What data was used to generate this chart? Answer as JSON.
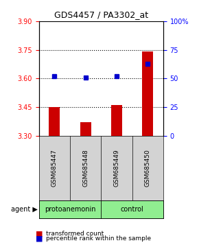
{
  "title": "GDS4457 / PA3302_at",
  "samples": [
    "GSM685447",
    "GSM685448",
    "GSM685449",
    "GSM685450"
  ],
  "red_values": [
    3.452,
    3.373,
    3.462,
    3.742
  ],
  "blue_values": [
    52,
    51,
    52,
    63
  ],
  "ylim_left": [
    3.3,
    3.9
  ],
  "ylim_right": [
    0,
    100
  ],
  "yticks_left": [
    3.3,
    3.45,
    3.6,
    3.75,
    3.9
  ],
  "yticks_right": [
    0,
    25,
    50,
    75,
    100
  ],
  "hlines": [
    3.45,
    3.6,
    3.75
  ],
  "groups": [
    {
      "label": "protoanemonin",
      "samples": [
        0,
        1
      ],
      "color": "#90EE90"
    },
    {
      "label": "control",
      "samples": [
        2,
        3
      ],
      "color": "#90EE90"
    }
  ],
  "bar_color": "#cc0000",
  "dot_color": "#0000cc",
  "bar_width": 0.35,
  "background_color": "#ffffff",
  "plot_bg": "#ffffff",
  "gray_bg": "#d3d3d3",
  "group_bar_color": "#90EE90",
  "agent_label": "agent"
}
